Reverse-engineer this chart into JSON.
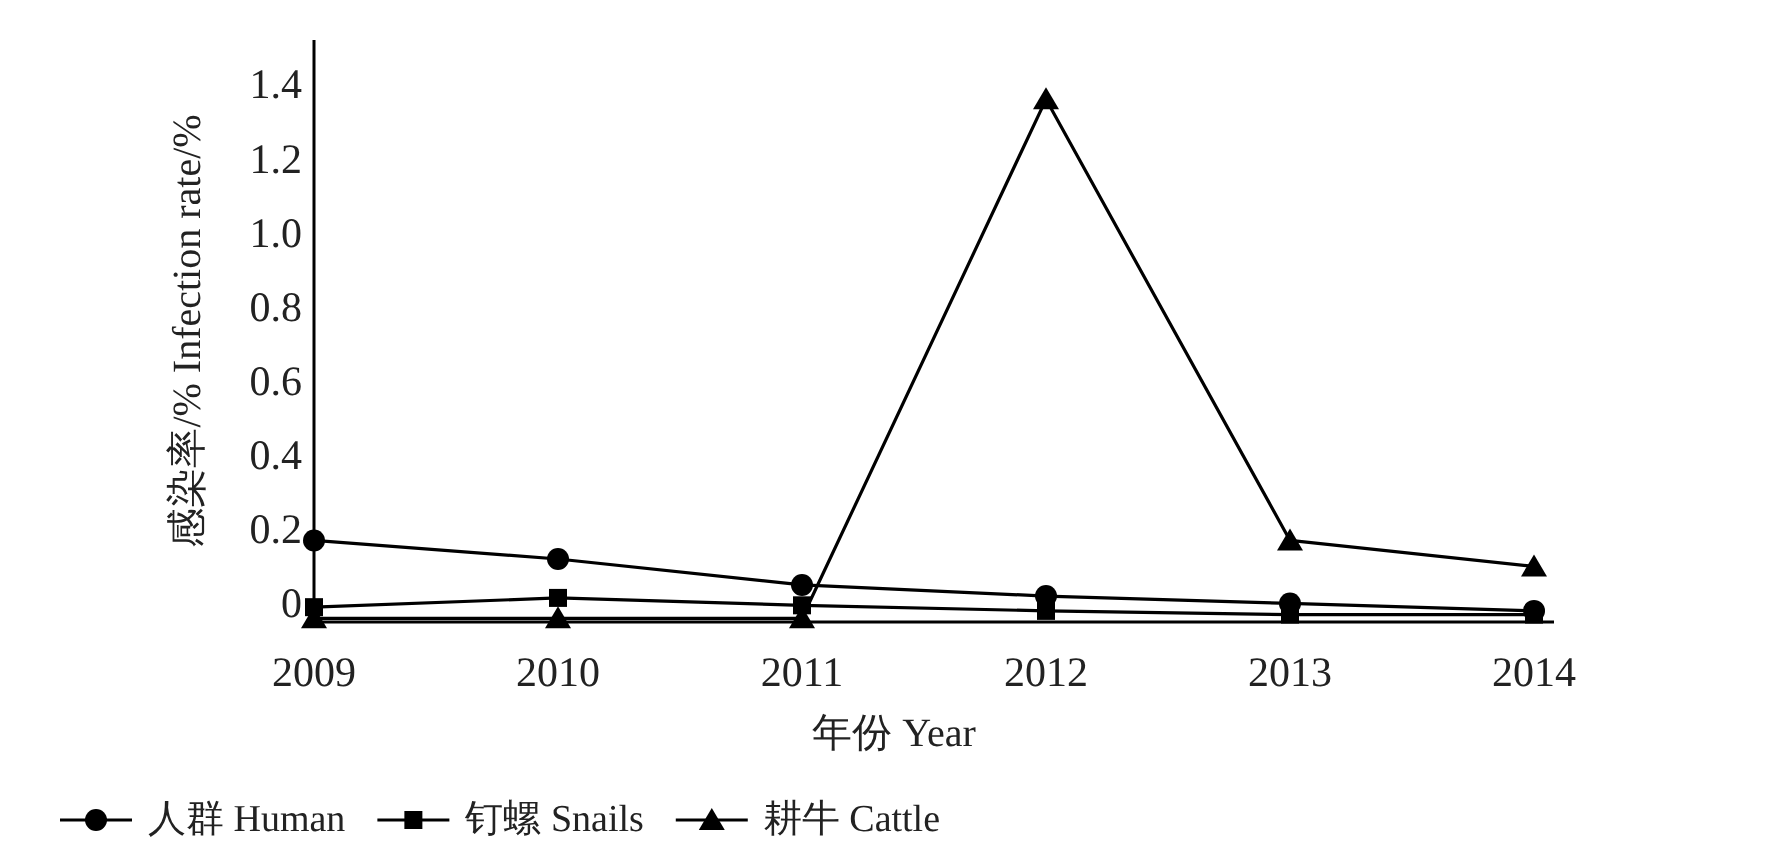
{
  "chart_data": {
    "type": "line",
    "xlabel": "年份 Year",
    "ylabel": "感染率/% Infection rate/%",
    "categories": [
      "2009",
      "2010",
      "2011",
      "2012",
      "2013",
      "2014"
    ],
    "ylim": [
      -0.05,
      1.52
    ],
    "yticks": [
      0,
      0.2,
      0.4,
      0.6,
      0.8,
      {
        "value": 1.0,
        "label": "1.0"
      },
      1.2,
      1.4
    ],
    "legend": "bottom",
    "grid": false,
    "line_style": "solid",
    "series": [
      {
        "name": "人群 Human",
        "color": "#000000",
        "marker": "circle",
        "values": [
          0.17,
          0.12,
          0.05,
          0.02,
          0.0,
          -0.02
        ]
      },
      {
        "name": "钉螺 Snails",
        "color": "#000000",
        "marker": "square",
        "values": [
          -0.01,
          0.015,
          -0.005,
          -0.02,
          -0.03,
          -0.03
        ]
      },
      {
        "name": "耕牛 Cattle",
        "color": "#000000",
        "marker": "triangle",
        "values": [
          -0.04,
          -0.04,
          -0.04,
          1.36,
          0.17,
          0.1
        ]
      }
    ]
  }
}
